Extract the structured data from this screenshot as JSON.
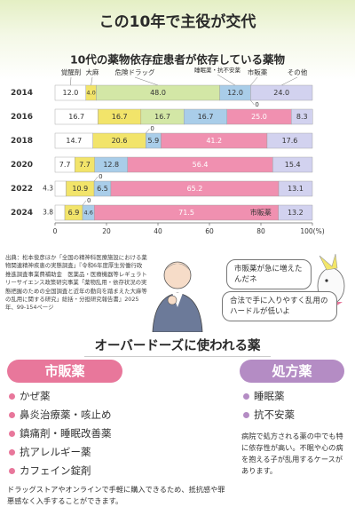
{
  "header": {
    "title": "この10年で主役が交代"
  },
  "chart_data": {
    "type": "bar",
    "orientation": "horizontal",
    "stacked": true,
    "title": "10代の薬物依存症患者が依存している薬物",
    "categories": [
      "2014",
      "2016",
      "2018",
      "2020",
      "2022",
      "2024"
    ],
    "series": [
      {
        "name": "覚醒剤",
        "color": "#ffffff",
        "values": [
          12.0,
          16.7,
          14.7,
          7.7,
          4.3,
          3.8
        ],
        "value_labels": [
          "12.0",
          "16.7",
          "14.7",
          "7.7",
          "4.3",
          "3.8"
        ]
      },
      {
        "name": "大麻",
        "color": "#f2e46a",
        "values": [
          4.0,
          16.7,
          20.6,
          7.7,
          10.9,
          6.9
        ],
        "value_labels": [
          "4.0",
          "16.7",
          "20.6",
          "7.7",
          "10.9",
          "6.9"
        ]
      },
      {
        "name": "危険ドラッグ",
        "color": "#d3e7a6",
        "values": [
          48.0,
          16.7,
          0,
          null,
          0,
          0
        ],
        "value_labels": [
          "48.0",
          "16.7",
          "0",
          null,
          "0",
          "0"
        ]
      },
      {
        "name": "睡眠薬・抗不安薬",
        "color": "#a9cde9",
        "values": [
          12.0,
          16.7,
          5.9,
          12.8,
          6.5,
          4.6
        ],
        "value_labels": [
          "12.0",
          "16.7",
          "5.9",
          "12.8",
          "6.5",
          "4.6"
        ]
      },
      {
        "name": "市販薬",
        "color": "#f090b0",
        "values": [
          0,
          25.0,
          41.2,
          56.4,
          65.2,
          71.5
        ],
        "value_labels": [
          "0",
          "25.0",
          "41.2",
          "56.4",
          "65.2",
          "71.5"
        ]
      },
      {
        "name": "その他",
        "color": "#d2d2ef",
        "values": [
          24.0,
          8.3,
          17.6,
          15.4,
          13.1,
          13.2
        ],
        "value_labels": [
          "24.0",
          "8.3",
          "17.6",
          "15.4",
          "13.1",
          "13.2"
        ]
      }
    ],
    "xlim": [
      0,
      100
    ],
    "xticks": [
      0,
      20,
      40,
      60,
      80,
      {
        "value": 100,
        "label": "100(%)"
      }
    ],
    "annotation": "市販薬"
  },
  "source": "出典：松本俊彦ほか「全国の精神科医療施設における薬物関連精神疾患の実態調査」『令和6年度厚生労働行政推進調査事業費補助金　医薬品・医療機器等レギュラトリーサイエンス政策研究事業「薬物乱用・依存状況の実態把握のための全国調査と近年の動向を踏まえた大麻等の乱用に関する研究」総括・分担研究報告書』2025年、99-154ページ",
  "speech": [
    "市販薬が急に増えたんだネ",
    "合法で手に入りやすく乱用のハードルが低いよ"
  ],
  "section_title": "オーバードーズに使われる薬",
  "otc": {
    "title": "市販薬",
    "items": [
      "かぜ薬",
      "鼻炎治療薬・咳止め",
      "鎮痛剤・睡眠改善薬",
      "抗アレルギー薬",
      "カフェイン錠剤"
    ],
    "note": "ドラッグストアやオンラインで手軽に購入できるため、抵抗感や罪悪感なく入手することができます。"
  },
  "prescription": {
    "title": "処方薬",
    "items": [
      "睡眠薬",
      "抗不安薬"
    ],
    "note": "病院で処方される薬の中でも特に依存性が高い。不眠や心の病を抱える子が乱用するケースがあります。"
  }
}
